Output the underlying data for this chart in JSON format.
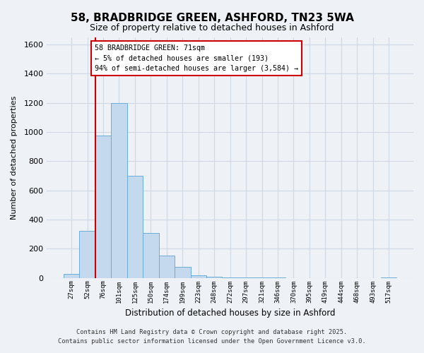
{
  "title": "58, BRADBRIDGE GREEN, ASHFORD, TN23 5WA",
  "subtitle": "Size of property relative to detached houses in Ashford",
  "xlabel": "Distribution of detached houses by size in Ashford",
  "ylabel": "Number of detached properties",
  "categories": [
    "27sqm",
    "52sqm",
    "76sqm",
    "101sqm",
    "125sqm",
    "150sqm",
    "174sqm",
    "199sqm",
    "223sqm",
    "248sqm",
    "272sqm",
    "297sqm",
    "321sqm",
    "346sqm",
    "370sqm",
    "395sqm",
    "419sqm",
    "444sqm",
    "468sqm",
    "493sqm",
    "517sqm"
  ],
  "values": [
    25,
    320,
    975,
    1200,
    700,
    310,
    155,
    75,
    20,
    10,
    5,
    2,
    1,
    1,
    0,
    0,
    0,
    0,
    0,
    0,
    2
  ],
  "bar_color": "#c5d9ee",
  "bar_edge_color": "#6aaed6",
  "background_color": "#eef2f7",
  "grid_color": "#d0d8e4",
  "vline_color": "#cc0000",
  "vline_x_index": 1.5,
  "annotation_title": "58 BRADBRIDGE GREEN: 71sqm",
  "annotation_line1": "← 5% of detached houses are smaller (193)",
  "annotation_line2": "94% of semi-detached houses are larger (3,584) →",
  "annotation_box_facecolor": "#ffffff",
  "annotation_box_edgecolor": "#cc0000",
  "ylim": [
    0,
    1650
  ],
  "yticks": [
    0,
    200,
    400,
    600,
    800,
    1000,
    1200,
    1400,
    1600
  ],
  "footer1": "Contains HM Land Registry data © Crown copyright and database right 2025.",
  "footer2": "Contains public sector information licensed under the Open Government Licence v3.0."
}
